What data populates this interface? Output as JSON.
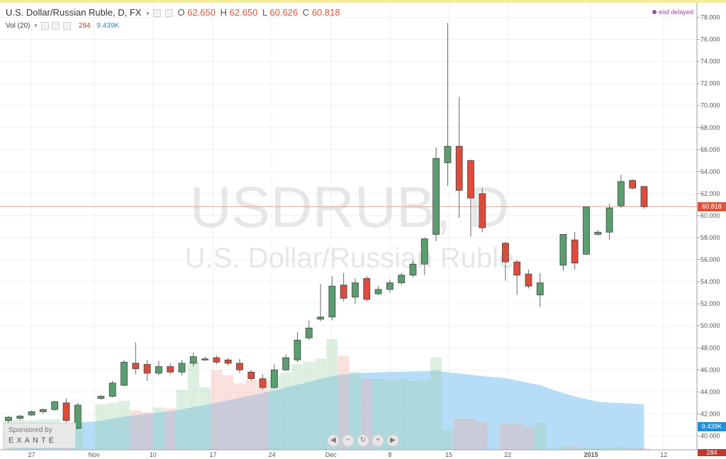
{
  "legend": {
    "symbol_title": "U.S. Dollar/Russian Ruble, D, FX",
    "o_label": "O",
    "o_value": "62.650",
    "h_label": "H",
    "h_value": "62.650",
    "l_label": "L",
    "l_value": "60.626",
    "c_label": "C",
    "c_value": "60.818",
    "vol_title": "Vol (20)",
    "vol_value": "284",
    "vol_ma_value": "9.439K"
  },
  "status": {
    "eod_text": "eod delayed"
  },
  "watermark": {
    "symbol": "USDRUB, D",
    "name": "U.S. Dollar/Russian Ruble"
  },
  "sponsor": {
    "line1": "Sponsored by",
    "line2": "EXANTE"
  },
  "nav": {
    "buttons": [
      "◀",
      "−",
      "↻",
      "+",
      "▶"
    ]
  },
  "price_labels": {
    "last_price": "60.818",
    "vol_ma": "9.439K",
    "vol_last": "284"
  },
  "colors": {
    "up": "#5a9e6f",
    "down": "#dc4c3b",
    "volume_ma": "#a9d7f7",
    "price_line": "#e8a191",
    "price_tag": "#e0533b",
    "vol_tag": "#1e90d8"
  },
  "chart_data": {
    "type": "candlestick",
    "x_ticks": [
      "27",
      "Nov",
      "10",
      "17",
      "24",
      "Dec",
      "8",
      "15",
      "22",
      "2015",
      "12"
    ],
    "y_ticks": [
      "40.000",
      "42.000",
      "44.000",
      "46.000",
      "48.000",
      "50.000",
      "52.000",
      "54.000",
      "56.000",
      "58.000",
      "60.000",
      "62.000",
      "64.000",
      "66.000",
      "68.000",
      "70.000",
      "72.000",
      "74.000",
      "76.000",
      "78.000"
    ],
    "ylim": [
      40,
      78.5
    ],
    "candles": [
      {
        "o": 41.4,
        "h": 41.8,
        "l": 41.1,
        "c": 41.7
      },
      {
        "o": 41.6,
        "h": 41.9,
        "l": 41.4,
        "c": 41.8
      },
      {
        "o": 41.9,
        "h": 42.3,
        "l": 41.8,
        "c": 42.2
      },
      {
        "o": 42.2,
        "h": 42.5,
        "l": 42.0,
        "c": 42.4
      },
      {
        "o": 42.4,
        "h": 43.2,
        "l": 42.3,
        "c": 43.1
      },
      {
        "o": 43.0,
        "h": 43.4,
        "l": 41.2,
        "c": 41.4
      },
      {
        "o": 40.7,
        "h": 43.0,
        "l": 40.6,
        "c": 42.8
      },
      {
        "o": null
      },
      {
        "o": 43.4,
        "h": 43.7,
        "l": 43.3,
        "c": 43.6
      },
      {
        "o": 43.6,
        "h": 45.0,
        "l": 43.5,
        "c": 44.8
      },
      {
        "o": 44.6,
        "h": 46.9,
        "l": 44.5,
        "c": 46.7
      },
      {
        "o": 46.6,
        "h": 48.5,
        "l": 45.6,
        "c": 46.1
      },
      {
        "o": 46.5,
        "h": 46.9,
        "l": 45.0,
        "c": 45.7
      },
      {
        "o": 45.7,
        "h": 46.8,
        "l": 45.5,
        "c": 46.3
      },
      {
        "o": 46.3,
        "h": 46.6,
        "l": 45.6,
        "c": 45.8
      },
      {
        "o": 45.8,
        "h": 46.9,
        "l": 45.5,
        "c": 46.6
      },
      {
        "o": 46.6,
        "h": 47.6,
        "l": 46.3,
        "c": 47.2
      },
      {
        "o": 47.0,
        "h": 47.2,
        "l": 46.8,
        "c": 46.9
      },
      {
        "o": 47.1,
        "h": 47.3,
        "l": 46.5,
        "c": 46.7
      },
      {
        "o": 46.9,
        "h": 47.1,
        "l": 46.4,
        "c": 46.6
      },
      {
        "o": 46.6,
        "h": 47.0,
        "l": 45.7,
        "c": 46.0
      },
      {
        "o": 45.8,
        "h": 46.0,
        "l": 45.0,
        "c": 45.2
      },
      {
        "o": 45.2,
        "h": 45.6,
        "l": 44.2,
        "c": 44.4
      },
      {
        "o": 44.4,
        "h": 46.5,
        "l": 44.3,
        "c": 46.0
      },
      {
        "o": 46.0,
        "h": 47.4,
        "l": 45.9,
        "c": 47.1
      },
      {
        "o": 46.9,
        "h": 49.4,
        "l": 46.7,
        "c": 48.7
      },
      {
        "o": 48.9,
        "h": 50.5,
        "l": 48.7,
        "c": 49.8
      },
      {
        "o": 50.6,
        "h": 53.8,
        "l": 50.4,
        "c": 50.8
      },
      {
        "o": 50.8,
        "h": 54.5,
        "l": 50.5,
        "c": 53.6
      },
      {
        "o": 53.7,
        "h": 54.8,
        "l": 52.2,
        "c": 52.5
      },
      {
        "o": 52.6,
        "h": 54.3,
        "l": 52.0,
        "c": 53.9
      },
      {
        "o": 54.3,
        "h": 54.5,
        "l": 52.2,
        "c": 52.4
      },
      {
        "o": 52.9,
        "h": 53.6,
        "l": 52.8,
        "c": 53.3
      },
      {
        "o": 53.3,
        "h": 54.2,
        "l": 53.0,
        "c": 53.9
      },
      {
        "o": 53.9,
        "h": 54.8,
        "l": 53.7,
        "c": 54.6
      },
      {
        "o": 54.6,
        "h": 55.9,
        "l": 54.4,
        "c": 55.6
      },
      {
        "o": 55.6,
        "h": 58.0,
        "l": 54.6,
        "c": 57.9
      },
      {
        "o": 58.3,
        "h": 66.2,
        "l": 57.7,
        "c": 65.2
      },
      {
        "o": 64.8,
        "h": 77.5,
        "l": 62.7,
        "c": 66.3
      },
      {
        "o": 66.3,
        "h": 70.8,
        "l": 59.8,
        "c": 62.3
      },
      {
        "o": 65.0,
        "h": 65.1,
        "l": 58.1,
        "c": 61.6
      },
      {
        "o": 62.0,
        "h": 62.5,
        "l": 58.5,
        "c": 58.9
      },
      {
        "o": null
      },
      {
        "o": 57.5,
        "h": 57.6,
        "l": 54.1,
        "c": 55.8
      },
      {
        "o": 55.8,
        "h": 56.0,
        "l": 52.8,
        "c": 54.6
      },
      {
        "o": 54.7,
        "h": 55.1,
        "l": 53.4,
        "c": 53.6
      },
      {
        "o": 52.8,
        "h": 54.8,
        "l": 51.7,
        "c": 53.9
      },
      {
        "o": null
      },
      {
        "o": 55.5,
        "h": 58.3,
        "l": 55.0,
        "c": 58.3
      },
      {
        "o": 57.8,
        "h": 58.5,
        "l": 55.1,
        "c": 55.7
      },
      {
        "o": 56.5,
        "h": 60.8,
        "l": 56.4,
        "c": 60.8
      },
      {
        "o": 58.3,
        "h": 58.7,
        "l": 58.2,
        "c": 58.5
      },
      {
        "o": 58.5,
        "h": 61.1,
        "l": 57.8,
        "c": 60.7
      },
      {
        "o": 60.9,
        "h": 63.7,
        "l": 60.7,
        "c": 63.1
      },
      {
        "o": 63.2,
        "h": 63.3,
        "l": 62.4,
        "c": 62.5
      },
      {
        "o": 62.65,
        "h": 62.65,
        "l": 60.626,
        "c": 60.818
      }
    ],
    "volume": [
      {
        "v": 6000,
        "up": true
      },
      {
        "v": 6200,
        "up": true
      },
      {
        "v": 6100,
        "up": true
      },
      {
        "v": 6300,
        "up": true
      },
      {
        "v": 6400,
        "up": true
      },
      {
        "v": 5500,
        "up": false
      },
      {
        "v": 5800,
        "up": true
      },
      {
        "v": null
      },
      {
        "v": 9500,
        "up": true
      },
      {
        "v": 9800,
        "up": true
      },
      {
        "v": 10200,
        "up": true
      },
      {
        "v": 8200,
        "up": false
      },
      {
        "v": 7800,
        "up": false
      },
      {
        "v": 8800,
        "up": true
      },
      {
        "v": 8600,
        "up": false
      },
      {
        "v": 12500,
        "up": true
      },
      {
        "v": 18200,
        "up": true
      },
      {
        "v": 13000,
        "up": true
      },
      {
        "v": 16600,
        "up": false
      },
      {
        "v": 15500,
        "up": false
      },
      {
        "v": 13800,
        "up": false
      },
      {
        "v": 14500,
        "up": false
      },
      {
        "v": 14500,
        "up": false
      },
      {
        "v": 15200,
        "up": true
      },
      {
        "v": 16000,
        "up": true
      },
      {
        "v": 17800,
        "up": true
      },
      {
        "v": 18300,
        "up": true
      },
      {
        "v": 18900,
        "up": true
      },
      {
        "v": 23000,
        "up": true
      },
      {
        "v": 19500,
        "up": false
      },
      {
        "v": 16200,
        "up": true
      },
      {
        "v": 14800,
        "up": false
      },
      {
        "v": 14800,
        "up": true
      },
      {
        "v": 14500,
        "up": true
      },
      {
        "v": 14800,
        "up": true
      },
      {
        "v": 14300,
        "up": true
      },
      {
        "v": 14500,
        "up": true
      },
      {
        "v": 19200,
        "up": true
      },
      {
        "v": 4200,
        "up": true
      },
      {
        "v": 6500,
        "up": false
      },
      {
        "v": 6500,
        "up": false
      },
      {
        "v": 5800,
        "up": false
      },
      {
        "v": null
      },
      {
        "v": 5500,
        "up": false
      },
      {
        "v": 5500,
        "up": false
      },
      {
        "v": 4800,
        "up": false
      },
      {
        "v": 5600,
        "up": true
      },
      {
        "v": null
      },
      {
        "v": 800,
        "up": true
      },
      {
        "v": 700,
        "up": false
      },
      {
        "v": 400,
        "up": true
      },
      {
        "v": 300,
        "up": true
      },
      {
        "v": 500,
        "up": true
      },
      {
        "v": 600,
        "up": true
      },
      {
        "v": 300,
        "up": false
      },
      {
        "v": 284,
        "up": false
      }
    ],
    "volume_ma": [
      4400,
      4700,
      4900,
      5100,
      5300,
      5400,
      5600,
      null,
      6000,
      6500,
      6900,
      7200,
      7400,
      7800,
      8000,
      8400,
      8900,
      9300,
      9800,
      10300,
      10800,
      11300,
      11800,
      12300,
      12900,
      13500,
      14100,
      14700,
      15300,
      15700,
      15900,
      16000,
      16100,
      16200,
      16200,
      16300,
      16300,
      16500,
      16100,
      15900,
      15600,
      15300,
      null,
      14900,
      14400,
      13900,
      13400,
      null,
      11800,
      11100,
      10500,
      10000,
      9800,
      9700,
      9600,
      9439
    ]
  }
}
